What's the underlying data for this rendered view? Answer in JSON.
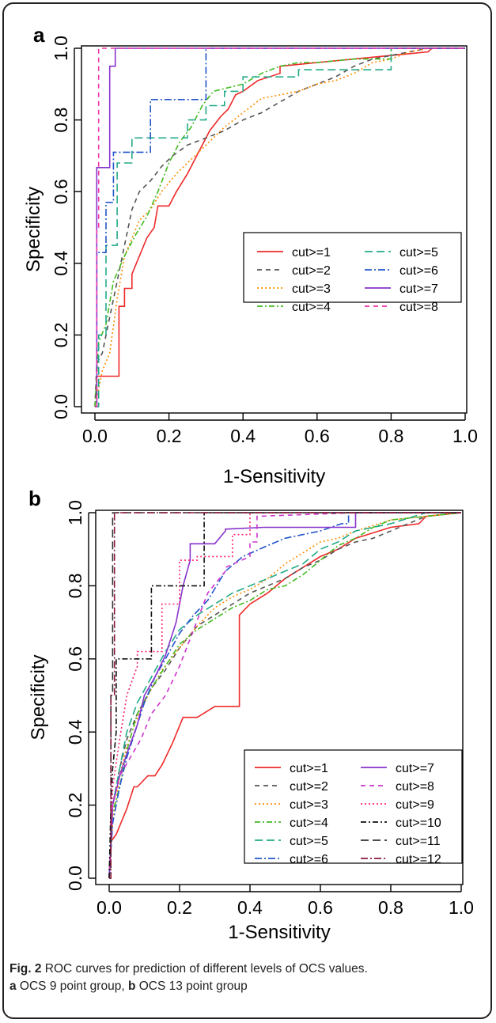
{
  "caption": {
    "fig_label": "Fig. 2",
    "line1_rest": " ROC curves for prediction of different levels of OCS values.",
    "a_label": "a",
    "a_text": " OCS 9 point group, ",
    "b_label": "b",
    "b_text": " OCS 13 point group"
  },
  "chart_data": [
    {
      "panel_label": "a",
      "type": "line",
      "xlabel": "1-Sensitivity",
      "ylabel": "Specificity",
      "xlim": [
        0,
        1
      ],
      "ylim": [
        0,
        1
      ],
      "xticks": [
        "0.0",
        "0.2",
        "0.4",
        "0.6",
        "0.8",
        "1.0"
      ],
      "yticks": [
        "0.0",
        "0.2",
        "0.4",
        "0.6",
        "0.8",
        "1.0"
      ],
      "grid": false,
      "legend_position": "center-right",
      "series": [
        {
          "name": "cut>=1",
          "color": "#ee2a2a",
          "dash": "solid",
          "x": [
            0,
            0.005,
            0.005,
            0.065,
            0.065,
            0.08,
            0.08,
            0.1,
            0.1,
            0.12,
            0.14,
            0.16,
            0.17,
            0.2,
            0.22,
            0.25,
            0.28,
            0.31,
            0.34,
            0.36,
            0.38,
            0.4,
            0.44,
            0.5,
            0.5,
            0.6,
            0.7,
            0.8,
            0.9,
            0.91,
            1
          ],
          "y": [
            0,
            0,
            0.085,
            0.085,
            0.28,
            0.28,
            0.33,
            0.33,
            0.37,
            0.42,
            0.47,
            0.5,
            0.56,
            0.56,
            0.6,
            0.65,
            0.71,
            0.77,
            0.81,
            0.83,
            0.87,
            0.88,
            0.91,
            0.93,
            0.95,
            0.96,
            0.97,
            0.98,
            0.99,
            1,
            1
          ]
        },
        {
          "name": "cut>=2",
          "color": "#555555",
          "dash": "6,5",
          "x": [
            0,
            0.005,
            0.02,
            0.04,
            0.06,
            0.08,
            0.1,
            0.12,
            0.15,
            0.18,
            0.21,
            0.25,
            0.3,
            0.35,
            0.4,
            0.45,
            0.5,
            0.55,
            0.6,
            0.65,
            0.7,
            0.75,
            0.8,
            0.85,
            0.9,
            1
          ],
          "y": [
            0,
            0.12,
            0.15,
            0.25,
            0.35,
            0.45,
            0.55,
            0.6,
            0.63,
            0.67,
            0.7,
            0.73,
            0.75,
            0.77,
            0.8,
            0.82,
            0.85,
            0.88,
            0.9,
            0.92,
            0.95,
            0.97,
            0.98,
            0.99,
            1,
            1
          ]
        },
        {
          "name": "cut>=3",
          "color": "#ff8c00",
          "dash": "2,3",
          "x": [
            0,
            0.02,
            0.04,
            0.06,
            0.08,
            0.1,
            0.12,
            0.15,
            0.18,
            0.22,
            0.26,
            0.3,
            0.35,
            0.4,
            0.45,
            0.5,
            0.55,
            0.6,
            0.65,
            0.7,
            0.75,
            0.8,
            0.85,
            0.9,
            1
          ],
          "y": [
            0,
            0.1,
            0.15,
            0.3,
            0.42,
            0.47,
            0.52,
            0.55,
            0.6,
            0.65,
            0.69,
            0.73,
            0.78,
            0.82,
            0.86,
            0.87,
            0.88,
            0.9,
            0.91,
            0.93,
            0.96,
            0.97,
            0.99,
            1,
            1
          ]
        },
        {
          "name": "cut>=4",
          "color": "#44bb22",
          "dash": "7,3,2,3",
          "x": [
            0,
            0.01,
            0.03,
            0.05,
            0.08,
            0.11,
            0.14,
            0.17,
            0.2,
            0.23,
            0.26,
            0.29,
            0.32,
            0.36,
            0.4,
            0.45,
            0.5,
            0.55,
            0.6,
            0.7,
            0.8,
            0.8,
            1
          ],
          "y": [
            0,
            0.18,
            0.23,
            0.35,
            0.42,
            0.48,
            0.53,
            0.6,
            0.68,
            0.74,
            0.78,
            0.84,
            0.88,
            0.89,
            0.9,
            0.93,
            0.95,
            0.96,
            0.96,
            0.97,
            0.97,
            1,
            1
          ]
        },
        {
          "name": "cut>=5",
          "color": "#22aa88",
          "dash": "10,5",
          "x": [
            0,
            0.01,
            0.01,
            0.03,
            0.03,
            0.06,
            0.06,
            0.1,
            0.1,
            0.25,
            0.25,
            0.3,
            0.3,
            0.35,
            0.35,
            0.4,
            0.4,
            0.55,
            0.55,
            0.7,
            0.75,
            0.8,
            0.8,
            1
          ],
          "y": [
            0,
            0,
            0.2,
            0.2,
            0.45,
            0.45,
            0.68,
            0.68,
            0.75,
            0.75,
            0.8,
            0.8,
            0.84,
            0.84,
            0.88,
            0.88,
            0.92,
            0.92,
            0.94,
            0.94,
            0.94,
            0.94,
            1,
            1
          ]
        },
        {
          "name": "cut>=6",
          "color": "#2255cc",
          "dash": "9,3,2,3",
          "x": [
            0,
            0.005,
            0.005,
            0.03,
            0.03,
            0.05,
            0.05,
            0.08,
            0.08,
            0.15,
            0.15,
            0.3,
            0.3,
            1
          ],
          "y": [
            0,
            0,
            0.43,
            0.43,
            0.57,
            0.57,
            0.71,
            0.71,
            0.71,
            0.71,
            0.857,
            0.857,
            1,
            1
          ]
        },
        {
          "name": "cut>=7",
          "color": "#8833cc",
          "dash": "solid",
          "x": [
            0,
            0.005,
            0.005,
            0.04,
            0.04,
            0.055,
            0.055,
            1
          ],
          "y": [
            0,
            0,
            0.667,
            0.667,
            0.95,
            0.95,
            1,
            1
          ]
        },
        {
          "name": "cut>=8",
          "color": "#ee33aa",
          "dash": "6,5",
          "x": [
            0,
            0.005,
            0.005,
            0.01,
            0.01,
            1
          ],
          "y": [
            0,
            0,
            0.5,
            0.5,
            1,
            1
          ]
        }
      ]
    },
    {
      "panel_label": "b",
      "type": "line",
      "xlabel": "1-Sensitivity",
      "ylabel": "Specificity",
      "xlim": [
        0,
        1
      ],
      "ylim": [
        0,
        1
      ],
      "xticks": [
        "0.0",
        "0.2",
        "0.4",
        "0.6",
        "0.8",
        "1.0"
      ],
      "yticks": [
        "0.0",
        "0.2",
        "0.4",
        "0.6",
        "0.8",
        "1.0"
      ],
      "grid": false,
      "legend_position": "center-right",
      "series": [
        {
          "name": "cut>=1",
          "color": "#ee2a2a",
          "dash": "solid",
          "x": [
            0,
            0.005,
            0.02,
            0.05,
            0.07,
            0.08,
            0.11,
            0.13,
            0.15,
            0.18,
            0.21,
            0.25,
            0.3,
            0.37,
            0.37,
            0.4,
            0.45,
            0.5,
            0.55,
            0.6,
            0.65,
            0.7,
            0.8,
            0.88,
            0.9,
            1
          ],
          "y": [
            0,
            0.1,
            0.12,
            0.19,
            0.25,
            0.25,
            0.28,
            0.28,
            0.31,
            0.37,
            0.44,
            0.44,
            0.47,
            0.47,
            0.72,
            0.75,
            0.78,
            0.82,
            0.85,
            0.88,
            0.9,
            0.93,
            0.96,
            0.97,
            0.99,
            1
          ]
        },
        {
          "name": "cut>=2",
          "color": "#555555",
          "dash": "6,5",
          "x": [
            0,
            0.01,
            0.03,
            0.05,
            0.08,
            0.12,
            0.16,
            0.2,
            0.25,
            0.3,
            0.35,
            0.4,
            0.45,
            0.5,
            0.55,
            0.6,
            0.65,
            0.7,
            0.75,
            0.8,
            0.9,
            1
          ],
          "y": [
            0,
            0.2,
            0.3,
            0.38,
            0.45,
            0.52,
            0.57,
            0.63,
            0.69,
            0.72,
            0.75,
            0.78,
            0.8,
            0.82,
            0.85,
            0.87,
            0.9,
            0.92,
            0.93,
            0.95,
            0.99,
            1
          ]
        },
        {
          "name": "cut>=3",
          "color": "#ff8c00",
          "dash": "2,3",
          "x": [
            0,
            0.01,
            0.03,
            0.05,
            0.08,
            0.11,
            0.15,
            0.2,
            0.25,
            0.3,
            0.35,
            0.4,
            0.45,
            0.5,
            0.55,
            0.6,
            0.65,
            0.7,
            0.8,
            0.9,
            1
          ],
          "y": [
            0,
            0.15,
            0.28,
            0.36,
            0.44,
            0.5,
            0.57,
            0.63,
            0.69,
            0.74,
            0.77,
            0.79,
            0.82,
            0.86,
            0.89,
            0.92,
            0.93,
            0.95,
            0.98,
            0.99,
            1
          ]
        },
        {
          "name": "cut>=4",
          "color": "#44bb22",
          "dash": "7,3,2,3",
          "x": [
            0,
            0.01,
            0.03,
            0.05,
            0.08,
            0.12,
            0.16,
            0.2,
            0.25,
            0.3,
            0.35,
            0.4,
            0.45,
            0.5,
            0.55,
            0.6,
            0.65,
            0.7,
            0.75,
            0.8,
            0.9,
            1
          ],
          "y": [
            0,
            0.18,
            0.25,
            0.35,
            0.45,
            0.52,
            0.58,
            0.64,
            0.68,
            0.71,
            0.74,
            0.76,
            0.79,
            0.8,
            0.83,
            0.87,
            0.91,
            0.93,
            0.96,
            0.98,
            0.99,
            1
          ]
        },
        {
          "name": "cut>=5",
          "color": "#22aa88",
          "dash": "10,5",
          "x": [
            0,
            0.01,
            0.03,
            0.05,
            0.08,
            0.12,
            0.16,
            0.2,
            0.25,
            0.3,
            0.35,
            0.4,
            0.45,
            0.5,
            0.55,
            0.6,
            0.65,
            0.7,
            0.8,
            0.9,
            1
          ],
          "y": [
            0,
            0.2,
            0.3,
            0.4,
            0.48,
            0.55,
            0.62,
            0.68,
            0.72,
            0.75,
            0.78,
            0.8,
            0.82,
            0.84,
            0.86,
            0.9,
            0.92,
            0.95,
            0.97,
            1,
            1
          ]
        },
        {
          "name": "cut>=6",
          "color": "#2255cc",
          "dash": "9,3,2,3",
          "x": [
            0,
            0.01,
            0.03,
            0.05,
            0.08,
            0.1,
            0.13,
            0.16,
            0.2,
            0.24,
            0.28,
            0.33,
            0.38,
            0.45,
            0.5,
            0.6,
            0.66,
            0.68,
            0.68,
            1
          ],
          "y": [
            0,
            0.15,
            0.25,
            0.33,
            0.42,
            0.48,
            0.55,
            0.6,
            0.67,
            0.72,
            0.76,
            0.84,
            0.88,
            0.91,
            0.93,
            0.95,
            0.97,
            0.97,
            1,
            1
          ]
        },
        {
          "name": "cut>=7",
          "color": "#8833cc",
          "dash": "solid",
          "x": [
            0,
            0.01,
            0.03,
            0.05,
            0.08,
            0.1,
            0.13,
            0.16,
            0.19,
            0.21,
            0.23,
            0.23,
            0.3,
            0.33,
            0.33,
            0.44,
            0.5,
            0.6,
            0.7,
            0.7,
            1
          ],
          "y": [
            0,
            0.2,
            0.28,
            0.34,
            0.42,
            0.5,
            0.55,
            0.61,
            0.7,
            0.8,
            0.87,
            0.915,
            0.915,
            0.95,
            0.955,
            0.96,
            0.96,
            0.96,
            0.96,
            1,
            1
          ]
        },
        {
          "name": "cut>=8",
          "color": "#cc33cc",
          "dash": "6,5",
          "x": [
            0,
            0.01,
            0.03,
            0.06,
            0.09,
            0.12,
            0.16,
            0.2,
            0.24,
            0.28,
            0.33,
            0.33,
            0.4,
            0.4,
            0.42,
            0.42,
            0.7,
            1
          ],
          "y": [
            0,
            0.2,
            0.28,
            0.33,
            0.38,
            0.45,
            0.5,
            0.58,
            0.68,
            0.78,
            0.84,
            0.85,
            0.88,
            0.92,
            0.92,
            0.99,
            1,
            1
          ]
        },
        {
          "name": "cut>=9",
          "color": "#ff2277",
          "dash": "2,3",
          "x": [
            0,
            0.01,
            0.03,
            0.05,
            0.08,
            0.08,
            0.15,
            0.15,
            0.2,
            0.2,
            0.25,
            0.25,
            0.35,
            0.35,
            0.4,
            0.4,
            1
          ],
          "y": [
            0,
            0.25,
            0.38,
            0.5,
            0.58,
            0.62,
            0.62,
            0.75,
            0.75,
            0.87,
            0.87,
            0.88,
            0.88,
            0.94,
            0.94,
            1,
            1
          ]
        },
        {
          "name": "cut>=10",
          "color": "#111111",
          "dash": "7,3,2,3",
          "x": [
            0,
            0.005,
            0.01,
            0.02,
            0.02,
            0.06,
            0.06,
            0.12,
            0.12,
            0.2,
            0.2,
            0.27,
            0.27,
            1
          ],
          "y": [
            0,
            0.2,
            0.3,
            0.4,
            0.6,
            0.6,
            0.6,
            0.6,
            0.8,
            0.8,
            0.8,
            0.8,
            1,
            1
          ]
        },
        {
          "name": "cut>=11",
          "color": "#333333",
          "dash": "10,5",
          "x": [
            0,
            0.005,
            0.005,
            0.01,
            0.01,
            1
          ],
          "y": [
            0,
            0,
            0.5,
            0.5,
            1,
            1
          ]
        },
        {
          "name": "cut>=12",
          "color": "#8b1a3a",
          "dash": "9,3,2,3",
          "x": [
            0,
            0.005,
            0.005,
            0.015,
            0.015,
            1
          ],
          "y": [
            0,
            0,
            0.5,
            0.5,
            1,
            1
          ]
        }
      ]
    }
  ]
}
